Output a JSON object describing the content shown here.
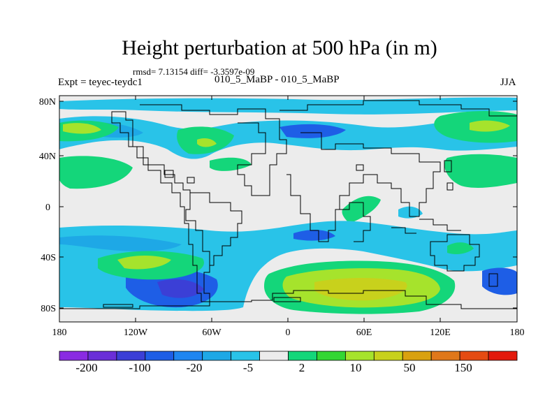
{
  "title": "Height perturbation at 500 hPa (in m)",
  "subtitle_stats": "rmsd= 7.13154 diff= -3.3597e-09",
  "left_label": "Expt = teyec-teydc1",
  "center_label": "010_5_MaBP - 010_5_MaBP",
  "right_label": "JJA",
  "map": {
    "lat_ticks": [
      "80N",
      "40N",
      "0",
      "40S",
      "80S"
    ],
    "lon_ticks": [
      "180",
      "120W",
      "60W",
      "0",
      "60E",
      "120E",
      "180"
    ]
  },
  "colorbar": {
    "colors": [
      "#8a2be2",
      "#6a2fd8",
      "#3b3fd6",
      "#1e5ee6",
      "#1f86f0",
      "#1ea8e6",
      "#29c3e8",
      "#ececec",
      "#14d67a",
      "#33d633",
      "#a6e32c",
      "#c8d11c",
      "#d9a10f",
      "#e0781a",
      "#e54b12",
      "#e31a0c"
    ],
    "labels": [
      "-200",
      "-100",
      "-20",
      "-5",
      "2",
      "10",
      "50",
      "150"
    ]
  }
}
